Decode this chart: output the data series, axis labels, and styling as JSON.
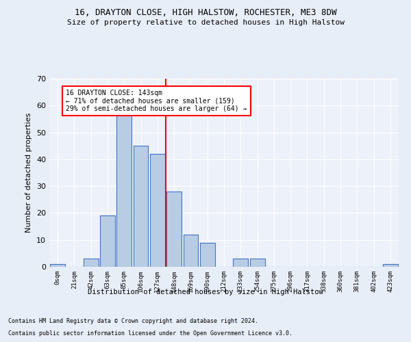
{
  "title1": "16, DRAYTON CLOSE, HIGH HALSTOW, ROCHESTER, ME3 8DW",
  "title2": "Size of property relative to detached houses in High Halstow",
  "xlabel": "Distribution of detached houses by size in High Halstow",
  "ylabel": "Number of detached properties",
  "bin_labels": [
    "0sqm",
    "21sqm",
    "42sqm",
    "63sqm",
    "85sqm",
    "106sqm",
    "127sqm",
    "148sqm",
    "169sqm",
    "190sqm",
    "212sqm",
    "233sqm",
    "254sqm",
    "275sqm",
    "296sqm",
    "317sqm",
    "338sqm",
    "360sqm",
    "381sqm",
    "402sqm",
    "423sqm"
  ],
  "bar_heights": [
    1,
    0,
    3,
    19,
    58,
    45,
    42,
    28,
    12,
    9,
    0,
    3,
    3,
    0,
    0,
    0,
    0,
    0,
    0,
    0,
    1
  ],
  "bar_color": "#b8cce4",
  "bar_edge_color": "#4472c4",
  "vline_x_idx": 7,
  "vline_color": "red",
  "annotation_text": "16 DRAYTON CLOSE: 143sqm\n← 71% of detached houses are smaller (159)\n29% of semi-detached houses are larger (64) →",
  "annotation_box_color": "white",
  "annotation_box_edge": "red",
  "ylim": [
    0,
    70
  ],
  "yticks": [
    0,
    10,
    20,
    30,
    40,
    50,
    60,
    70
  ],
  "footer1": "Contains HM Land Registry data © Crown copyright and database right 2024.",
  "footer2": "Contains public sector information licensed under the Open Government Licence v3.0.",
  "bg_color": "#e8eef8",
  "plot_bg_color": "#edf1f9"
}
